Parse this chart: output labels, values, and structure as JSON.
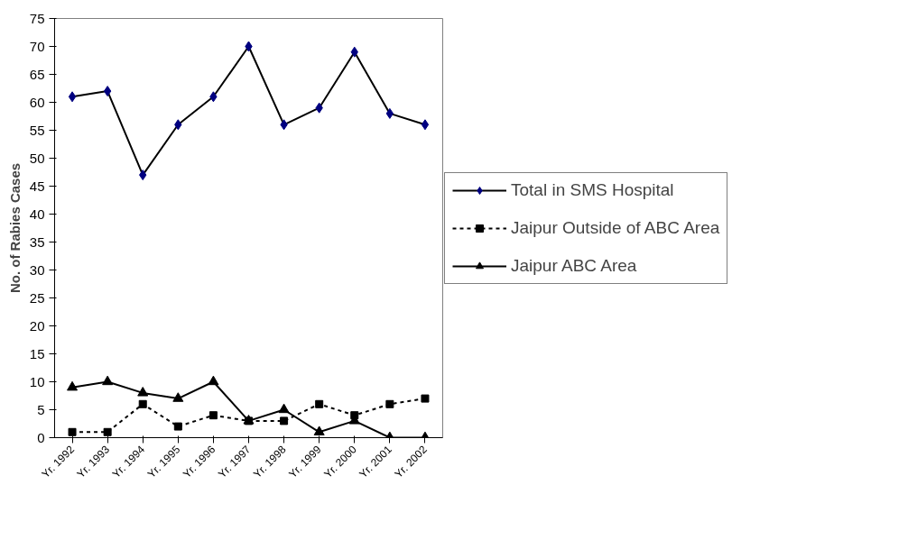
{
  "chart_data": {
    "type": "line",
    "ylabel": "No. of Rabies Cases",
    "categories": [
      "Yr. 1992",
      "Yr. 1993",
      "Yr. 1994",
      "Yr. 1995",
      "Yr. 1996",
      "Yr. 1997",
      "Yr. 1998",
      "Yr. 1999",
      "Yr. 2000",
      "Yr. 2001",
      "Yr. 2002"
    ],
    "series": [
      {
        "name": "Total in SMS Hospital",
        "color": "#000080",
        "marker": "diamond",
        "line_style": "solid",
        "values": [
          61,
          62,
          47,
          56,
          61,
          70,
          56,
          59,
          69,
          58,
          56
        ]
      },
      {
        "name": "Jaipur Outside of ABC Area",
        "color": "#000000",
        "marker": "square",
        "line_style": "dashed",
        "values": [
          1,
          1,
          6,
          2,
          4,
          3,
          3,
          6,
          4,
          6,
          7
        ]
      },
      {
        "name": "Jaipur ABC Area",
        "color": "#000000",
        "marker": "triangle",
        "line_style": "solid",
        "values": [
          9,
          10,
          8,
          7,
          10,
          3,
          5,
          1,
          3,
          0,
          0
        ]
      }
    ],
    "ylim": [
      0,
      75
    ],
    "yticks": [
      0,
      5,
      10,
      15,
      20,
      25,
      30,
      35,
      40,
      45,
      50,
      55,
      60,
      65,
      70,
      75
    ],
    "grid": false,
    "legend": "right"
  }
}
